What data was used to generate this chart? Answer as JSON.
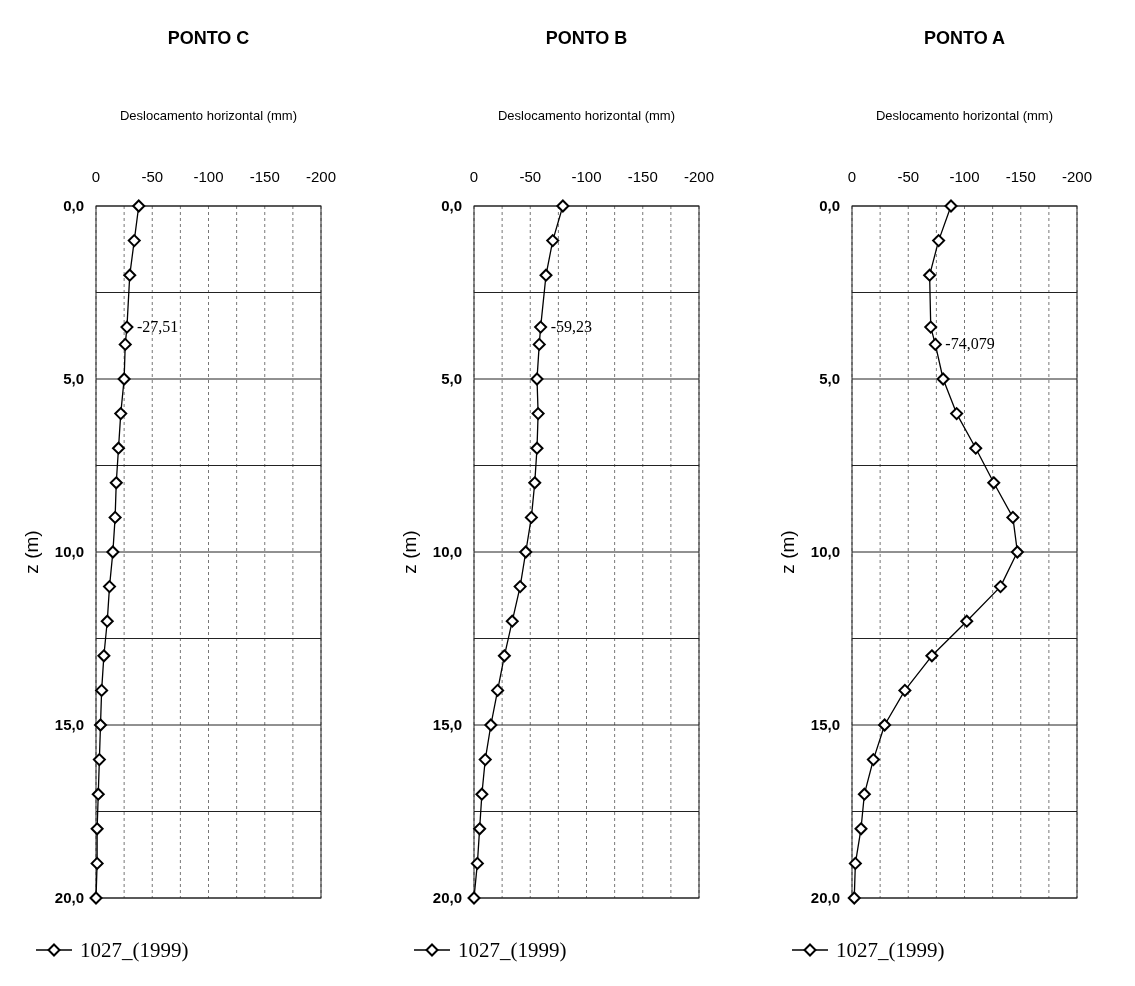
{
  "chart_data": [
    {
      "type": "line",
      "title": "PONTO C",
      "xlabel": "Deslocamento horizontal (mm)",
      "ylabel": "z (m)",
      "xlim": [
        0,
        -200
      ],
      "ylim": [
        20,
        0
      ],
      "xticks": [
        0,
        {
          "value": -25,
          "label": null
        },
        -50,
        {
          "value": -75,
          "label": null
        },
        -100,
        {
          "value": -125,
          "label": null
        },
        -150,
        {
          "value": -175,
          "label": null
        },
        -200
      ],
      "yticks": [
        {
          "value": 0,
          "label": "0,0"
        },
        {
          "value": 2.5,
          "label": null
        },
        {
          "value": 5,
          "label": "5,0"
        },
        {
          "value": 7.5,
          "label": null
        },
        {
          "value": 10,
          "label": "10,0"
        },
        {
          "value": 12.5,
          "label": null
        },
        {
          "value": 15,
          "label": "15,0"
        },
        {
          "value": 17.5,
          "label": null
        },
        {
          "value": 20,
          "label": "20,0"
        }
      ],
      "grid": true,
      "legend": "bottom",
      "marker": "diamond",
      "line_style": "solid",
      "series": [
        {
          "name": "1027_(1999)",
          "color": "#000000",
          "x": [
            -38,
            -34,
            -30,
            -27.51,
            -26,
            -25,
            -22,
            -20,
            -18,
            -17,
            -15,
            -12,
            -10,
            -7,
            -5,
            -4,
            -3,
            -2,
            -1,
            -1,
            0
          ],
          "values": [
            0,
            1,
            2,
            3.5,
            4,
            5,
            6,
            7,
            8,
            9,
            10,
            11,
            12,
            13,
            14,
            15,
            16,
            17,
            18,
            19,
            20
          ]
        }
      ],
      "annotations": [
        {
          "text": "-27,51",
          "x": -27.51,
          "y": 3.5
        }
      ]
    },
    {
      "type": "line",
      "title": "PONTO B",
      "xlabel": "Deslocamento horizontal (mm)",
      "ylabel": "z (m)",
      "xlim": [
        0,
        -200
      ],
      "ylim": [
        20,
        0
      ],
      "xticks": [
        0,
        {
          "value": -25,
          "label": null
        },
        -50,
        {
          "value": -75,
          "label": null
        },
        -100,
        {
          "value": -125,
          "label": null
        },
        -150,
        {
          "value": -175,
          "label": null
        },
        -200
      ],
      "yticks": [
        {
          "value": 0,
          "label": "0,0"
        },
        {
          "value": 2.5,
          "label": null
        },
        {
          "value": 5,
          "label": "5,0"
        },
        {
          "value": 7.5,
          "label": null
        },
        {
          "value": 10,
          "label": "10,0"
        },
        {
          "value": 12.5,
          "label": null
        },
        {
          "value": 15,
          "label": "15,0"
        },
        {
          "value": 17.5,
          "label": null
        },
        {
          "value": 20,
          "label": "20,0"
        }
      ],
      "grid": true,
      "legend": "bottom",
      "marker": "diamond",
      "line_style": "solid",
      "series": [
        {
          "name": "1027_(1999)",
          "color": "#000000",
          "x": [
            -79,
            -70,
            -64,
            -59.23,
            -58,
            -56,
            -57,
            -56,
            -54,
            -51,
            -46,
            -41,
            -34,
            -27,
            -21,
            -15,
            -10,
            -7,
            -5,
            -3,
            0
          ],
          "values": [
            0,
            1,
            2,
            3.5,
            4,
            5,
            6,
            7,
            8,
            9,
            10,
            11,
            12,
            13,
            14,
            15,
            16,
            17,
            18,
            19,
            20
          ]
        }
      ],
      "annotations": [
        {
          "text": "-59,23",
          "x": -59.23,
          "y": 3.5
        }
      ]
    },
    {
      "type": "line",
      "title": "PONTO A",
      "xlabel": "Deslocamento horizontal (mm)",
      "ylabel": "z (m)",
      "xlim": [
        0,
        -200
      ],
      "ylim": [
        20,
        0
      ],
      "xticks": [
        0,
        {
          "value": -25,
          "label": null
        },
        -50,
        {
          "value": -75,
          "label": null
        },
        -100,
        {
          "value": -125,
          "label": null
        },
        -150,
        {
          "value": -175,
          "label": null
        },
        -200
      ],
      "yticks": [
        {
          "value": 0,
          "label": "0,0"
        },
        {
          "value": 2.5,
          "label": null
        },
        {
          "value": 5,
          "label": "5,0"
        },
        {
          "value": 7.5,
          "label": null
        },
        {
          "value": 10,
          "label": "10,0"
        },
        {
          "value": 12.5,
          "label": null
        },
        {
          "value": 15,
          "label": "15,0"
        },
        {
          "value": 17.5,
          "label": null
        },
        {
          "value": 20,
          "label": "20,0"
        }
      ],
      "grid": true,
      "legend": "bottom",
      "marker": "diamond",
      "line_style": "solid",
      "series": [
        {
          "name": "1027_(1999)",
          "color": "#000000",
          "x": [
            -88,
            -77,
            -69,
            -70,
            -74.079,
            -81,
            -93,
            -110,
            -126,
            -143,
            -147,
            -132,
            -102,
            -71,
            -47,
            -29,
            -19,
            -11,
            -8,
            -3,
            -2
          ],
          "values": [
            0,
            1,
            2,
            3.5,
            4,
            5,
            6,
            7,
            8,
            9,
            10,
            11,
            12,
            13,
            14,
            15,
            16,
            17,
            18,
            19,
            20
          ]
        }
      ],
      "annotations": [
        {
          "text": "-74,079",
          "x": -74.079,
          "y": 4
        }
      ]
    }
  ]
}
